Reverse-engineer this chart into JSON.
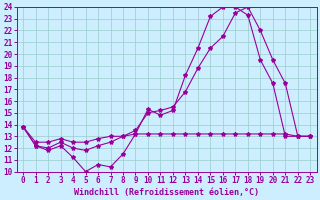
{
  "xlabel": "Windchill (Refroidissement éolien,°C)",
  "bg_color": "#cceeff",
  "line_color": "#990099",
  "xlim": [
    -0.5,
    23.5
  ],
  "ylim": [
    10,
    24
  ],
  "xticks": [
    0,
    1,
    2,
    3,
    4,
    5,
    6,
    7,
    8,
    9,
    10,
    11,
    12,
    13,
    14,
    15,
    16,
    17,
    18,
    19,
    20,
    21,
    22,
    23
  ],
  "yticks": [
    10,
    11,
    12,
    13,
    14,
    15,
    16,
    17,
    18,
    19,
    20,
    21,
    22,
    23,
    24
  ],
  "line1_x": [
    0,
    1,
    2,
    3,
    4,
    5,
    6,
    7,
    8,
    9,
    10,
    11,
    12,
    13,
    14,
    15,
    16,
    17,
    18,
    19,
    20,
    21,
    22,
    23
  ],
  "line1_y": [
    13.8,
    12.2,
    11.8,
    12.2,
    11.2,
    10.0,
    10.6,
    10.4,
    11.5,
    13.2,
    15.3,
    14.8,
    15.2,
    18.2,
    20.5,
    23.2,
    24.0,
    24.0,
    23.3,
    19.5,
    17.5,
    13.0,
    13.0,
    13.0
  ],
  "line2_x": [
    0,
    1,
    2,
    3,
    4,
    5,
    6,
    7,
    8,
    9,
    10,
    11,
    12,
    13,
    14,
    15,
    16,
    17,
    18,
    19,
    20,
    21,
    22,
    23
  ],
  "line2_y": [
    13.8,
    12.2,
    12.0,
    12.5,
    12.0,
    11.8,
    12.2,
    12.5,
    13.0,
    13.5,
    15.0,
    15.2,
    15.5,
    16.8,
    18.8,
    20.5,
    21.5,
    23.5,
    24.0,
    22.0,
    19.5,
    17.5,
    13.0,
    13.0
  ],
  "line3_x": [
    0,
    1,
    2,
    3,
    4,
    5,
    6,
    7,
    8,
    9,
    10,
    11,
    12,
    13,
    14,
    15,
    16,
    17,
    18,
    19,
    20,
    21,
    22,
    23
  ],
  "line3_y": [
    13.8,
    12.5,
    12.5,
    12.8,
    12.5,
    12.5,
    12.8,
    13.0,
    13.0,
    13.2,
    13.2,
    13.2,
    13.2,
    13.2,
    13.2,
    13.2,
    13.2,
    13.2,
    13.2,
    13.2,
    13.2,
    13.2,
    13.0,
    13.0
  ],
  "grid_color": "#99cccc",
  "xlabel_fontsize": 6,
  "tick_fontsize": 5.5
}
